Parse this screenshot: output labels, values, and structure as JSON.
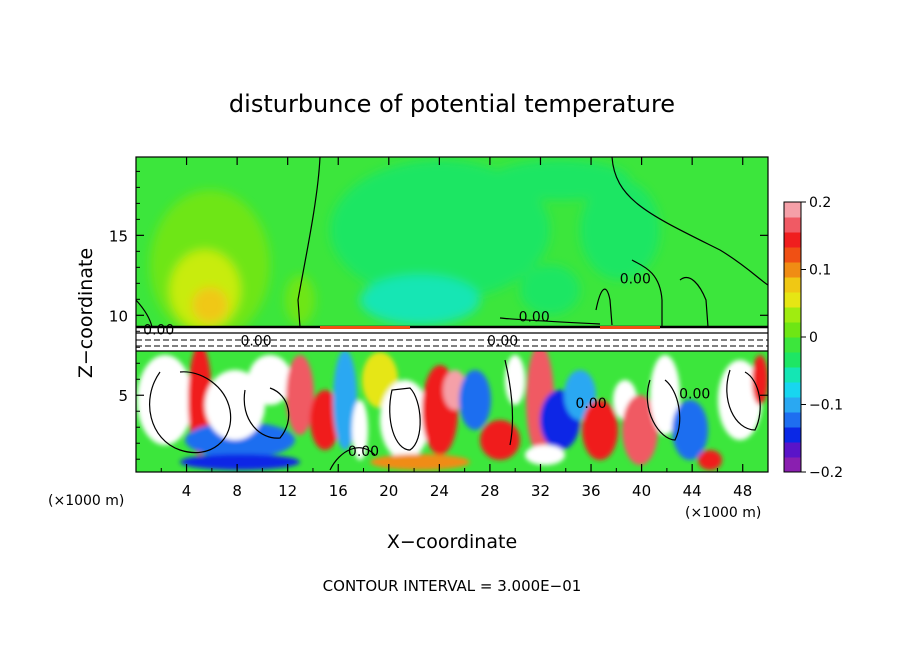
{
  "chart_data": {
    "type": "heatmap",
    "title": "disturbunce of potential temperature",
    "xlabel": "X−coordinate",
    "ylabel": "Z−coordinate",
    "x_unit_left": "(×1000 m)",
    "x_unit_right": "(×1000 m)",
    "xlim": [
      0,
      50
    ],
    "ylim": [
      0.2,
      19.9
    ],
    "x_ticks": [
      4,
      8,
      12,
      16,
      20,
      24,
      28,
      32,
      36,
      40,
      44,
      48
    ],
    "x_tick_labels": [
      "4",
      "8",
      "12",
      "16",
      "20",
      "24",
      "28",
      "32",
      "36",
      "40",
      "44",
      "48"
    ],
    "y_ticks": [
      5,
      10,
      15
    ],
    "y_tick_labels": [
      "5",
      "10",
      "15"
    ],
    "colorbar": {
      "range": [
        -0.2,
        0.2
      ],
      "tick_values": [
        0.2,
        0.1,
        0,
        -0.1,
        -0.2
      ],
      "tick_labels": [
        "0.2",
        "0.1",
        "0",
        "−0.1",
        "−0.2"
      ],
      "colors": [
        "#8a1fb0",
        "#5a14c8",
        "#0a28e6",
        "#1e6ef0",
        "#2aa8f2",
        "#18d6f0",
        "#14e6b4",
        "#1ee664",
        "#3ce63c",
        "#6ee614",
        "#a0ec10",
        "#e6e614",
        "#f0c814",
        "#f08c14",
        "#f05014",
        "#f01e1e",
        "#f05a64",
        "#f5a0a8"
      ]
    },
    "background_color": "#3ce63c",
    "contour_labels": [
      {
        "text": "0.00",
        "x": 31.5,
        "y": 9.6
      },
      {
        "text": "0.00",
        "x": 39.5,
        "y": 12.0
      },
      {
        "text": "0.00",
        "x": 9.5,
        "y": 8.1
      },
      {
        "text": "0.00",
        "x": 29.0,
        "y": 8.1
      },
      {
        "text": "0.00",
        "x": 1.8,
        "y": 8.8
      },
      {
        "text": "0.00",
        "x": 36.0,
        "y": 4.2
      },
      {
        "text": "0.00",
        "x": 44.2,
        "y": 4.8
      },
      {
        "text": "0.00",
        "x": 18.0,
        "y": 1.2
      }
    ],
    "annotation": "CONTOUR INTERVAL = 3.000E−01"
  }
}
